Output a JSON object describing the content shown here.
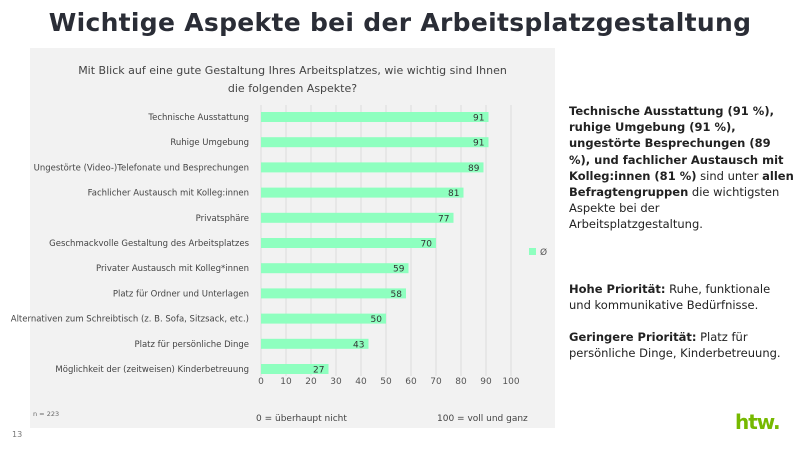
{
  "title": "Wichtige Aspekte bei der Arbeitsplatzgestaltung",
  "colors": {
    "bar": "#8effbf",
    "title": "#2a2d36",
    "panel": "#f2f2f2",
    "logo": "#76b900"
  },
  "chart_data": {
    "type": "bar",
    "orientation": "horizontal",
    "title": "Mit Blick auf eine gute Gestaltung Ihres Arbeitsplatzes, wie wichtig sind Ihnen die folgenden Aspekte?",
    "categories": [
      "Technische Ausstattung",
      "Ruhige Umgebung",
      "Ungestörte (Video-)Telefonate und Besprechungen",
      "Fachlicher Austausch mit Kolleg:innen",
      "Privatsphäre",
      "Geschmackvolle Gestaltung des Arbeitsplatzes",
      "Privater Austausch mit Kolleg*innen",
      "Platz für Ordner und Unterlagen",
      "Alternativen zum Schreibtisch (z. B. Sofa, Sitzsack, etc.)",
      "Platz für persönliche Dinge",
      "Möglichkeit der (zeitweisen) Kinderbetreuung"
    ],
    "series": [
      {
        "name": "Ø",
        "values": [
          91,
          91,
          89,
          81,
          77,
          70,
          59,
          58,
          50,
          43,
          27
        ]
      }
    ],
    "xlim": [
      0,
      100
    ],
    "xticks": [
      0,
      10,
      20,
      30,
      40,
      50,
      60,
      70,
      80,
      90,
      100
    ],
    "grid": true,
    "legend": "right",
    "xlabel_left": "0 = überhaupt nicht",
    "xlabel_right": "100 = voll und ganz",
    "note": "n = 223"
  },
  "side": {
    "p1_bold": "Technische Ausstattung (91 %), ruhige Umgebung (91 %), ungestörte Besprechungen (89 %), und fachlicher Austausch mit Kolleg:innen  (81 %)",
    "p1_a": " sind unter ",
    "p1_bold2": "allen Befragtengruppen",
    "p1_b": " die wichtigsten Aspekte bei der Arbeitsplatzgestaltung.",
    "p2_bold": "Hohe Priorität:",
    "p2": " Ruhe, funktionale und kommunikative Bedürfnisse.",
    "p3_bold": "Geringere Priorität:",
    "p3": " Platz für persönliche Dinge, Kinderbetreuung."
  },
  "page_number": "13",
  "logo": "htw."
}
